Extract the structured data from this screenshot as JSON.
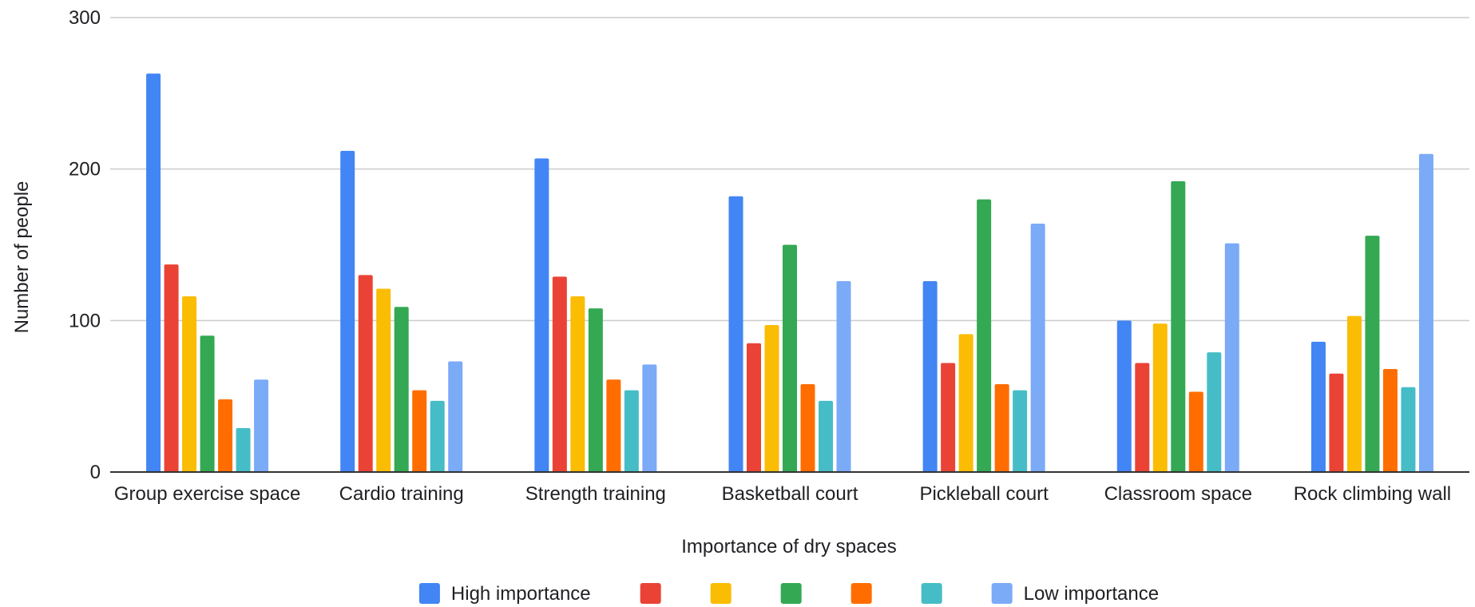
{
  "chart_data": {
    "type": "bar",
    "xlabel": "Importance of dry spaces",
    "ylabel": "Number of people",
    "ylim": [
      0,
      300
    ],
    "yticks": [
      0,
      100,
      200,
      300
    ],
    "grid": true,
    "legend_position": "bottom",
    "categories": [
      "Group exercise space",
      "Cardio training",
      "Strength training",
      "Basketball court",
      "Pickleball court",
      "Classroom space",
      "Rock climbing wall"
    ],
    "series": [
      {
        "name": "High importance",
        "color": "#4285F4",
        "values": [
          263,
          212,
          207,
          182,
          126,
          100,
          86
        ]
      },
      {
        "color": "#EA4335",
        "values": [
          137,
          130,
          129,
          85,
          72,
          72,
          65
        ]
      },
      {
        "color": "#FBBC04",
        "values": [
          116,
          121,
          116,
          97,
          91,
          98,
          103
        ]
      },
      {
        "color": "#34A853",
        "values": [
          90,
          109,
          108,
          150,
          180,
          192,
          156
        ]
      },
      {
        "color": "#FF6D01",
        "values": [
          48,
          54,
          61,
          58,
          58,
          53,
          68
        ]
      },
      {
        "color": "#46BDC6",
        "values": [
          29,
          47,
          54,
          47,
          54,
          79,
          56
        ]
      },
      {
        "name": "Low importance",
        "color": "#7BAAF7",
        "values": [
          61,
          73,
          71,
          126,
          164,
          151,
          210
        ]
      }
    ]
  }
}
